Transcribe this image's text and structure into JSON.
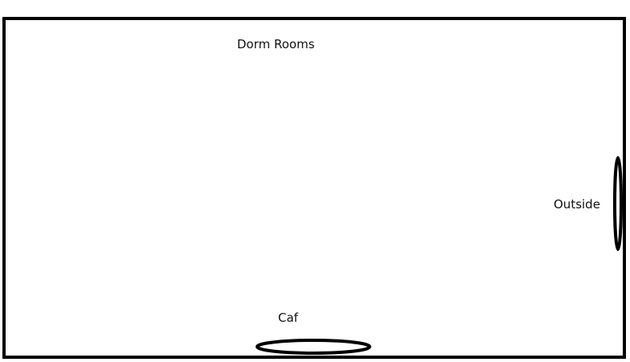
{
  "diagram": {
    "labels": {
      "dorm_rooms": "Dorm Rooms",
      "outside": "Outside",
      "caf": "Caf"
    },
    "colors": {
      "stroke": "#000000",
      "background": "#ffffff",
      "text": "#111111"
    }
  }
}
